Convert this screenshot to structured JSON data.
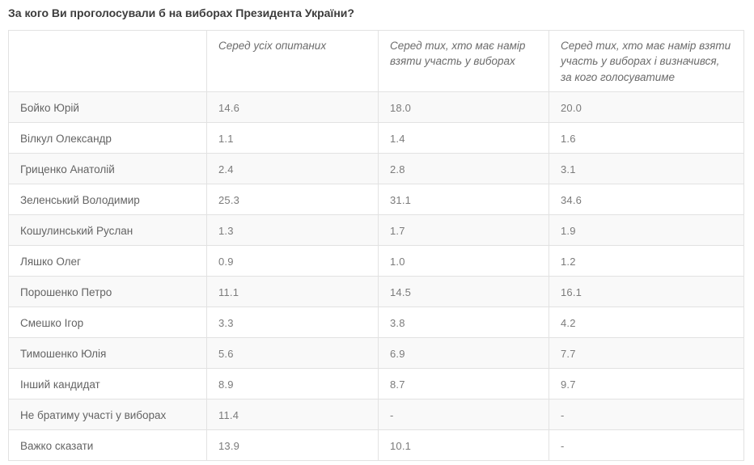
{
  "page_title": "За кого Ви проголосували б на виборах Президента України?",
  "colors": {
    "title_text": "#3c3c3c",
    "cell_text": "#646464",
    "value_text": "#7b7b7b",
    "border": "#e2e2e2",
    "row_stripe": "#f9f9f9",
    "background": "#ffffff"
  },
  "chart_data": {
    "type": "table",
    "title": "За кого Ви проголосували б на виборах Президента України?",
    "columns": [
      "",
      "Серед усіх опитаних",
      "Серед тих, хто має намір взяти участь у виборах",
      "Серед тих, хто має намір взяти участь у виборах і визначився, за кого голосуватиме"
    ],
    "missing_value": "-",
    "rows": [
      {
        "label": "Бойко Юрій",
        "values": [
          "14.6",
          "18.0",
          "20.0"
        ]
      },
      {
        "label": "Вілкул Олександр",
        "values": [
          "1.1",
          "1.4",
          "1.6"
        ]
      },
      {
        "label": "Гриценко Анатолій",
        "values": [
          "2.4",
          "2.8",
          "3.1"
        ]
      },
      {
        "label": "Зеленський Володимир",
        "values": [
          "25.3",
          "31.1",
          "34.6"
        ]
      },
      {
        "label": "Кошулинський Руслан",
        "values": [
          "1.3",
          "1.7",
          "1.9"
        ]
      },
      {
        "label": "Ляшко Олег",
        "values": [
          "0.9",
          "1.0",
          "1.2"
        ]
      },
      {
        "label": "Порошенко Петро",
        "values": [
          "11.1",
          "14.5",
          "16.1"
        ]
      },
      {
        "label": "Смешко Ігор",
        "values": [
          "3.3",
          "3.8",
          "4.2"
        ]
      },
      {
        "label": "Тимошенко Юлія",
        "values": [
          "5.6",
          "6.9",
          "7.7"
        ]
      },
      {
        "label": "Інший кандидат",
        "values": [
          "8.9",
          "8.7",
          "9.7"
        ]
      },
      {
        "label": "Не братиму участі у виборах",
        "values": [
          "11.4",
          "-",
          "-"
        ]
      },
      {
        "label": "Важко сказати",
        "values": [
          "13.9",
          "10.1",
          "-"
        ]
      }
    ]
  }
}
